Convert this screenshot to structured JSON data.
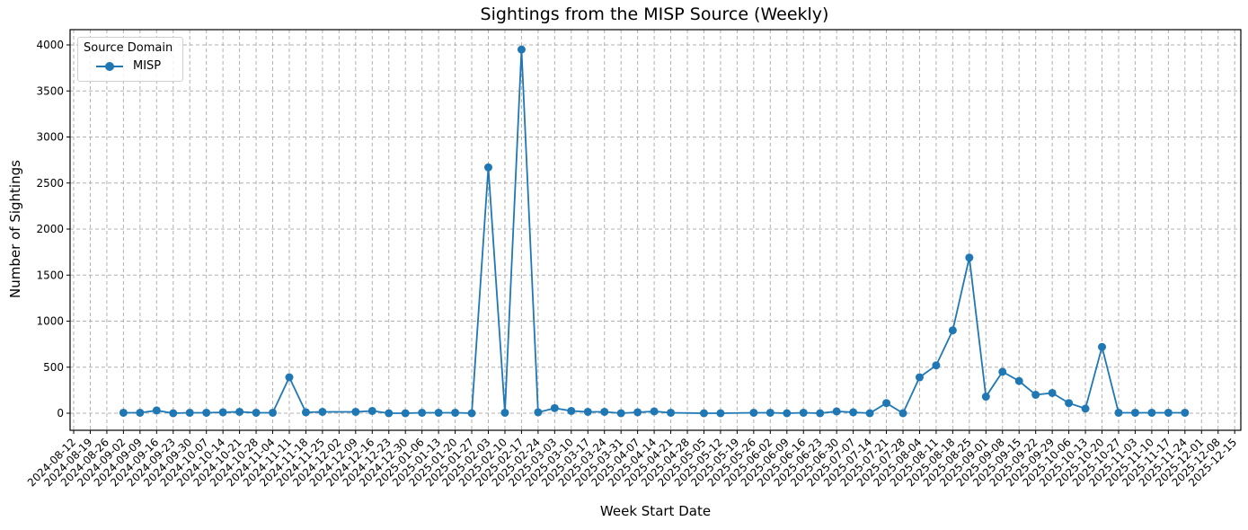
{
  "chart_data": {
    "type": "line",
    "title": "Sightings from the MISP Source (Weekly)",
    "xlabel": "Week Start Date",
    "ylabel": "Number of Sightings",
    "ylim": [
      -200,
      4150
    ],
    "yticks": [
      0,
      500,
      1000,
      1500,
      2000,
      2500,
      3000,
      3500,
      4000
    ],
    "grid": true,
    "grid_style": "dashed",
    "legend": {
      "title": "Source Domain",
      "position": "upper left",
      "entries": [
        "MISP"
      ]
    },
    "x_ticks": [
      "2024-08-12",
      "2024-08-19",
      "2024-08-26",
      "2024-09-02",
      "2024-09-09",
      "2024-09-16",
      "2024-09-23",
      "2024-09-30",
      "2024-10-07",
      "2024-10-14",
      "2024-10-21",
      "2024-10-28",
      "2024-11-04",
      "2024-11-11",
      "2024-11-18",
      "2024-11-25",
      "2024-12-02",
      "2024-12-09",
      "2024-12-16",
      "2024-12-23",
      "2024-12-30",
      "2025-01-06",
      "2025-01-13",
      "2025-01-20",
      "2025-01-27",
      "2025-02-03",
      "2025-02-10",
      "2025-02-17",
      "2025-02-24",
      "2025-03-03",
      "2025-03-10",
      "2025-03-17",
      "2025-03-24",
      "2025-03-31",
      "2025-04-07",
      "2025-04-14",
      "2025-04-21",
      "2025-04-28",
      "2025-05-05",
      "2025-05-12",
      "2025-05-19",
      "2025-05-26",
      "2025-06-02",
      "2025-06-09",
      "2025-06-16",
      "2025-06-23",
      "2025-06-30",
      "2025-07-07",
      "2025-07-14",
      "2025-07-21",
      "2025-07-28",
      "2025-08-04",
      "2025-08-11",
      "2025-08-18",
      "2025-08-25",
      "2025-09-01",
      "2025-09-08",
      "2025-09-15",
      "2025-09-22",
      "2025-09-29",
      "2025-10-06",
      "2025-10-13",
      "2025-10-20",
      "2025-10-27",
      "2025-11-03",
      "2025-11-10",
      "2025-11-17",
      "2025-11-24",
      "2025-12-01",
      "2025-12-08",
      "2025-12-15"
    ],
    "series": [
      {
        "name": "MISP",
        "color": "#1f77b4",
        "marker": "o",
        "x": [
          "2024-09-02",
          "2024-09-09",
          "2024-09-16",
          "2024-09-23",
          "2024-09-30",
          "2024-10-07",
          "2024-10-14",
          "2024-10-21",
          "2024-10-28",
          "2024-11-04",
          "2024-11-11",
          "2024-11-18",
          "2024-11-25",
          "2024-12-09",
          "2024-12-16",
          "2024-12-23",
          "2024-12-30",
          "2025-01-06",
          "2025-01-13",
          "2025-01-20",
          "2025-01-27",
          "2025-02-03",
          "2025-02-10",
          "2025-02-17",
          "2025-02-24",
          "2025-03-03",
          "2025-03-10",
          "2025-03-17",
          "2025-03-24",
          "2025-03-31",
          "2025-04-07",
          "2025-04-14",
          "2025-04-21",
          "2025-05-05",
          "2025-05-12",
          "2025-05-26",
          "2025-06-02",
          "2025-06-09",
          "2025-06-16",
          "2025-06-23",
          "2025-06-30",
          "2025-07-07",
          "2025-07-14",
          "2025-07-21",
          "2025-07-28",
          "2025-08-04",
          "2025-08-11",
          "2025-08-18",
          "2025-08-25",
          "2025-09-01",
          "2025-09-08",
          "2025-09-15",
          "2025-09-22",
          "2025-09-29",
          "2025-10-06",
          "2025-10-13",
          "2025-10-20",
          "2025-10-27",
          "2025-11-03",
          "2025-11-10",
          "2025-11-17",
          "2025-11-24"
        ],
        "values": [
          5,
          5,
          30,
          0,
          5,
          5,
          10,
          15,
          5,
          5,
          390,
          10,
          15,
          15,
          25,
          0,
          0,
          5,
          5,
          5,
          0,
          2670,
          5,
          3950,
          10,
          55,
          25,
          15,
          15,
          0,
          10,
          20,
          5,
          0,
          0,
          5,
          5,
          0,
          5,
          0,
          20,
          10,
          0,
          110,
          0,
          390,
          520,
          900,
          1690,
          180,
          450,
          350,
          200,
          220,
          110,
          50,
          720,
          5,
          5,
          5,
          5,
          5
        ]
      }
    ]
  },
  "ui": {
    "title": "Sightings from the MISP Source (Weekly)",
    "xlabel": "Week Start Date",
    "ylabel": "Number of Sightings",
    "legend_title": "Source Domain",
    "legend_entry": "MISP"
  }
}
